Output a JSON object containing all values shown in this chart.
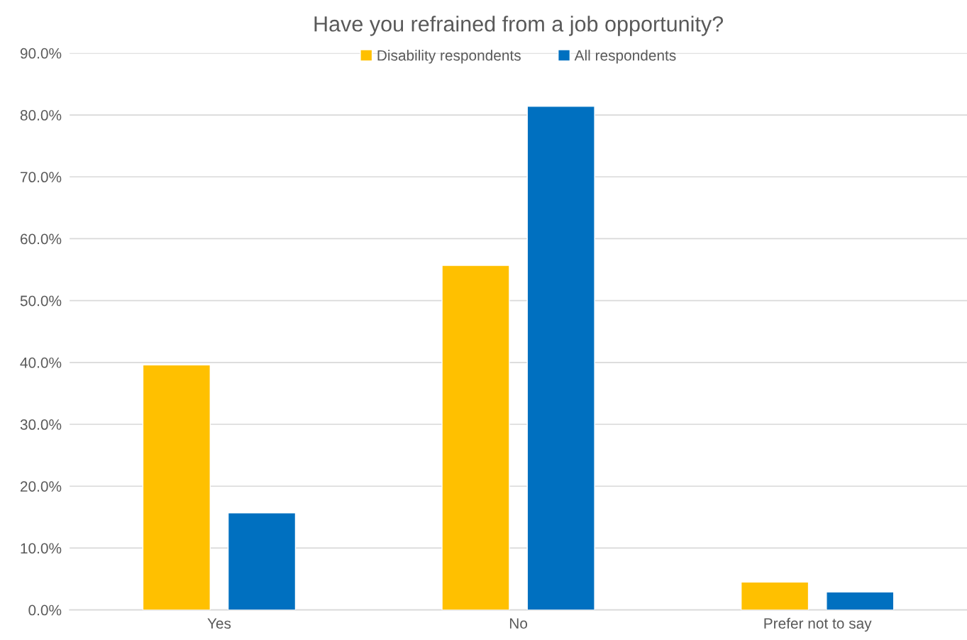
{
  "chart_data": {
    "type": "bar",
    "title": "Have you refrained from a job opportunity?",
    "categories": [
      "Yes",
      "No",
      "Prefer not to say"
    ],
    "series": [
      {
        "name": "Disability respondents",
        "color": "#ffc000",
        "values": [
          39.6,
          55.7,
          4.5
        ]
      },
      {
        "name": "All respondents",
        "color": "#0070c0",
        "values": [
          15.7,
          81.4,
          2.9
        ]
      }
    ],
    "ylim": [
      0,
      90
    ],
    "yticks": [
      {
        "value": 0,
        "label": "0.0%"
      },
      {
        "value": 10,
        "label": "10.0%"
      },
      {
        "value": 20,
        "label": "20.0%"
      },
      {
        "value": 30,
        "label": "30.0%"
      },
      {
        "value": 40,
        "label": "40.0%"
      },
      {
        "value": 50,
        "label": "50.0%"
      },
      {
        "value": 60,
        "label": "60.0%"
      },
      {
        "value": 70,
        "label": "70.0%"
      },
      {
        "value": 80,
        "label": "80.0%"
      },
      {
        "value": 90,
        "label": "90.0%"
      }
    ],
    "grid": "y",
    "legend": "top"
  }
}
